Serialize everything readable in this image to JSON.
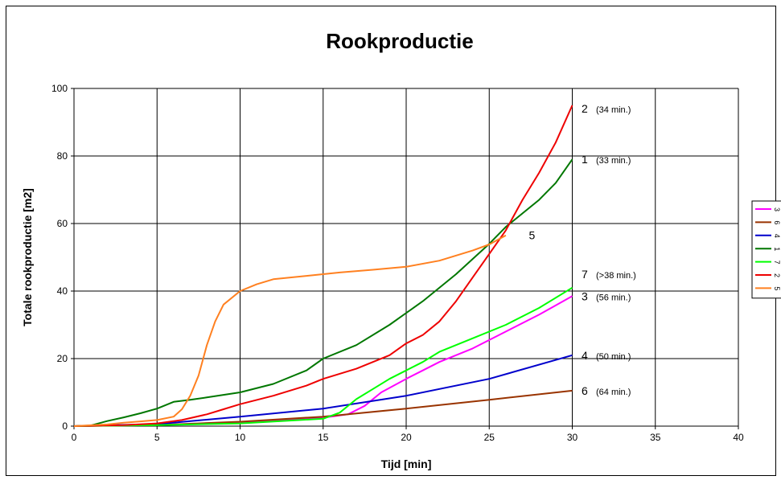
{
  "chart_data": {
    "type": "line",
    "title": "Rookproductie",
    "xlabel": "Tijd [min]",
    "ylabel": "Totale rookproductie [m2]",
    "xlim": [
      0,
      40
    ],
    "ylim": [
      0,
      100
    ],
    "x_ticks": [
      0,
      5,
      10,
      15,
      20,
      25,
      30,
      35,
      40
    ],
    "y_ticks": [
      0,
      20,
      40,
      60,
      80,
      100
    ],
    "grid": true,
    "legend_position": "right",
    "series": [
      {
        "color": "#ff00ff",
        "points": [
          [
            0,
            0
          ],
          [
            5,
            0.4
          ],
          [
            10,
            1
          ],
          [
            15,
            2.5
          ],
          [
            16.5,
            3.5
          ],
          [
            17.5,
            6
          ],
          [
            18.5,
            10
          ],
          [
            20,
            14
          ],
          [
            21,
            16.5
          ],
          [
            22,
            19
          ],
          [
            24,
            23
          ],
          [
            26,
            28
          ],
          [
            28,
            33
          ],
          [
            30,
            38.5
          ]
        ]
      },
      {
        "color": "#993300",
        "points": [
          [
            0,
            0
          ],
          [
            5,
            0.3
          ],
          [
            10,
            1.3
          ],
          [
            15,
            2.8
          ],
          [
            20,
            5.2
          ],
          [
            25,
            7.8
          ],
          [
            30,
            10.5
          ]
        ]
      },
      {
        "color": "#0000cc",
        "points": [
          [
            0,
            0
          ],
          [
            5,
            0.6
          ],
          [
            10,
            2.8
          ],
          [
            15,
            5.2
          ],
          [
            20,
            9
          ],
          [
            25,
            14
          ],
          [
            30,
            21
          ]
        ]
      },
      {
        "color": "#007700",
        "points": [
          [
            0,
            0
          ],
          [
            1,
            0.2
          ],
          [
            2,
            1.5
          ],
          [
            3,
            2.6
          ],
          [
            4,
            3.8
          ],
          [
            5,
            5.2
          ],
          [
            6,
            7.2
          ],
          [
            7,
            7.8
          ],
          [
            8,
            8.5
          ],
          [
            10,
            10
          ],
          [
            12,
            12.5
          ],
          [
            14,
            16.5
          ],
          [
            15,
            20
          ],
          [
            17,
            24
          ],
          [
            19,
            30
          ],
          [
            21,
            37
          ],
          [
            23,
            45
          ],
          [
            25,
            54
          ],
          [
            26,
            59
          ],
          [
            27,
            63
          ],
          [
            28,
            67
          ],
          [
            29,
            72
          ],
          [
            30,
            79
          ]
        ]
      },
      {
        "color": "#00ff00",
        "points": [
          [
            0,
            0
          ],
          [
            5,
            0.3
          ],
          [
            10,
            0.8
          ],
          [
            15,
            2.2
          ],
          [
            16,
            4
          ],
          [
            17,
            8
          ],
          [
            18,
            11
          ],
          [
            19,
            14
          ],
          [
            20,
            16.5
          ],
          [
            21,
            19
          ],
          [
            22,
            22
          ],
          [
            24,
            26
          ],
          [
            26,
            30
          ],
          [
            28,
            35
          ],
          [
            30,
            41
          ]
        ]
      },
      {
        "color": "#ee0000",
        "points": [
          [
            0,
            0
          ],
          [
            3,
            0.3
          ],
          [
            5,
            0.8
          ],
          [
            6.5,
            1.8
          ],
          [
            8,
            3.5
          ],
          [
            9,
            5
          ],
          [
            10,
            6.5
          ],
          [
            12,
            9
          ],
          [
            14,
            12
          ],
          [
            15,
            14
          ],
          [
            17,
            17
          ],
          [
            19,
            21
          ],
          [
            20,
            24.5
          ],
          [
            21,
            27
          ],
          [
            22,
            31
          ],
          [
            23,
            37
          ],
          [
            24,
            44
          ],
          [
            25,
            51
          ],
          [
            26,
            58
          ],
          [
            27,
            67
          ],
          [
            28,
            75
          ],
          [
            29,
            84
          ],
          [
            30,
            95
          ]
        ]
      },
      {
        "color": "#ff8020",
        "points": [
          [
            0,
            0
          ],
          [
            2,
            0.5
          ],
          [
            3,
            1
          ],
          [
            4,
            1.4
          ],
          [
            5,
            1.8
          ],
          [
            6,
            2.8
          ],
          [
            6.5,
            5
          ],
          [
            7,
            9
          ],
          [
            7.5,
            15
          ],
          [
            8,
            24
          ],
          [
            8.5,
            31
          ],
          [
            9,
            36
          ],
          [
            10,
            40
          ],
          [
            11,
            42
          ],
          [
            12,
            43.5
          ],
          [
            14,
            44.5
          ],
          [
            16,
            45.5
          ],
          [
            18,
            46.3
          ],
          [
            20,
            47.2
          ],
          [
            22,
            49
          ],
          [
            24,
            52
          ],
          [
            25,
            53.8
          ],
          [
            26,
            56.5
          ]
        ]
      }
    ],
    "end_labels": [
      {
        "num": "2",
        "sub": "(34 min.)",
        "y": 94
      },
      {
        "num": "1",
        "sub": "(33 min.)",
        "y": 79
      },
      {
        "num": "7",
        "sub": "(>38 min.)",
        "y": 45
      },
      {
        "num": "3",
        "sub": "(56 min.)",
        "y": 38.5
      },
      {
        "num": "4",
        "sub": "(50 min.)",
        "y": 21
      },
      {
        "num": "6",
        "sub": "(64 min.)",
        "y": 10.5
      }
    ],
    "inline_label": {
      "text": "5",
      "x": 27,
      "y": 56.5
    },
    "legend_entries": [
      "3",
      "6",
      "4",
      "1",
      "7",
      "2",
      "5"
    ]
  }
}
